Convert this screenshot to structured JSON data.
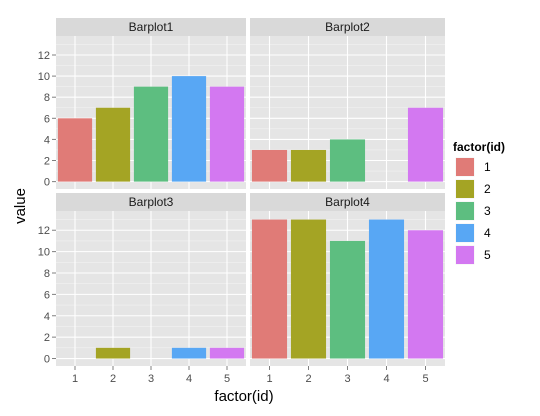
{
  "chart_data": {
    "type": "bar",
    "facet_titles": [
      "Barplot1",
      "Barplot2",
      "Barplot3",
      "Barplot4"
    ],
    "categories": [
      "1",
      "2",
      "3",
      "4",
      "5"
    ],
    "xlabel": "factor(id)",
    "ylabel": "value",
    "y_ticks": [
      "0",
      "2",
      "4",
      "6",
      "8",
      "10",
      "12"
    ],
    "ylim": [
      -0.7,
      13.8
    ],
    "grid": true,
    "legend": {
      "title": "factor(id)",
      "placement": "right",
      "labels": [
        "1",
        "2",
        "3",
        "4",
        "5"
      ]
    },
    "colors": [
      "#E07B77",
      "#A4A424",
      "#5DBE80",
      "#58A7F4",
      "#D378F1"
    ],
    "panels": [
      {
        "title": "Barplot1",
        "values": [
          6,
          7,
          9,
          10,
          9
        ]
      },
      {
        "title": "Barplot2",
        "values": [
          3,
          3,
          4,
          0,
          7
        ]
      },
      {
        "title": "Barplot3",
        "values": [
          0,
          1,
          0,
          1,
          1
        ]
      },
      {
        "title": "Barplot4",
        "values": [
          13,
          13,
          11,
          13,
          12
        ]
      }
    ]
  }
}
